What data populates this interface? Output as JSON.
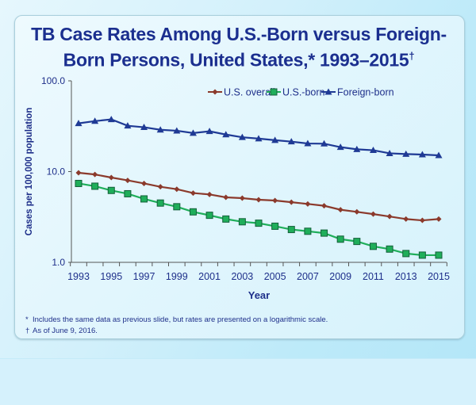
{
  "chart_data": {
    "type": "line",
    "title_line1": "TB Case Rates Among U.S.-Born versus Foreign-",
    "title_line2": "Born Persons, United States,* 1993–2015",
    "title_mark": "†",
    "xlabel": "Year",
    "ylabel": "Cases per 100,000 population",
    "yscale": "log",
    "ylim": [
      1.0,
      100.0
    ],
    "yticks": [
      "1.0",
      "10.0",
      "100.0"
    ],
    "xticks": [
      "1993",
      "1995",
      "1997",
      "1999",
      "2001",
      "2003",
      "2005",
      "2007",
      "2009",
      "2011",
      "2013",
      "2015"
    ],
    "x": [
      1993,
      1994,
      1995,
      1996,
      1997,
      1998,
      1999,
      2000,
      2001,
      2002,
      2003,
      2004,
      2005,
      2006,
      2007,
      2008,
      2009,
      2010,
      2011,
      2012,
      2013,
      2014,
      2015
    ],
    "legend_position": "top-right",
    "grid": false,
    "series": [
      {
        "name": "U.S. overall",
        "color": "#8b3a2c",
        "marker": "diamond",
        "values": [
          9.7,
          9.3,
          8.6,
          8.0,
          7.4,
          6.8,
          6.4,
          5.8,
          5.6,
          5.2,
          5.1,
          4.9,
          4.8,
          4.6,
          4.4,
          4.2,
          3.8,
          3.6,
          3.4,
          3.2,
          3.0,
          2.9,
          3.0
        ]
      },
      {
        "name": "U.S.-born",
        "color": "#1fae5a",
        "marker": "square",
        "values": [
          7.4,
          6.9,
          6.2,
          5.7,
          5.0,
          4.5,
          4.1,
          3.6,
          3.3,
          3.0,
          2.8,
          2.7,
          2.5,
          2.3,
          2.2,
          2.1,
          1.8,
          1.7,
          1.5,
          1.4,
          1.25,
          1.2,
          1.2
        ]
      },
      {
        "name": "Foreign-born",
        "color": "#1f3a95",
        "marker": "triangle",
        "values": [
          34.0,
          36.0,
          37.6,
          32.0,
          30.8,
          28.9,
          28.2,
          26.6,
          27.8,
          25.6,
          23.9,
          23.1,
          22.2,
          21.4,
          20.4,
          20.3,
          18.6,
          17.6,
          17.2,
          15.9,
          15.6,
          15.4,
          15.1
        ]
      }
    ]
  },
  "footnotes": [
    {
      "mark": "*",
      "text": "Includes the same data as previous slide, but rates are presented on a logarithmic scale."
    },
    {
      "mark": "†",
      "text": "As of June 9, 2016."
    }
  ]
}
